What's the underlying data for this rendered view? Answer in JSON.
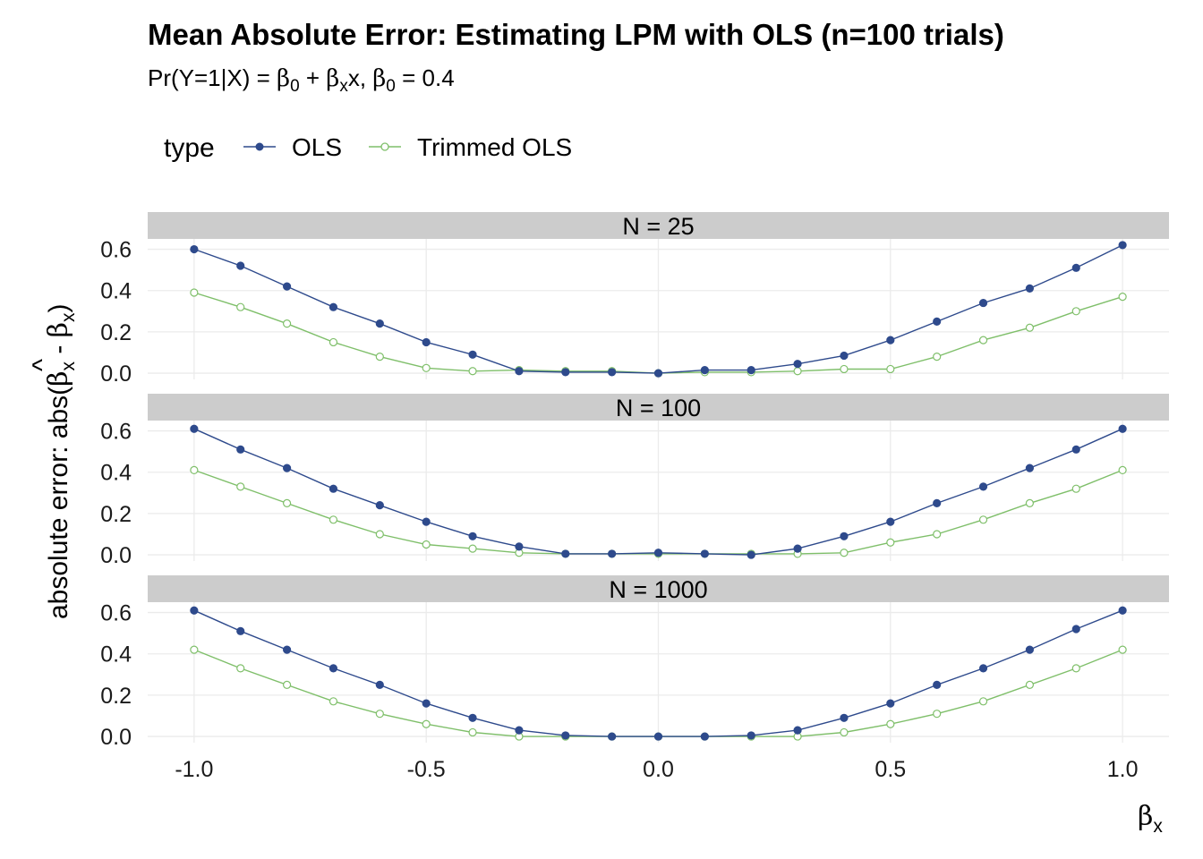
{
  "title": "Mean Absolute Error: Estimating LPM with OLS (n=100 trials)",
  "subtitle": {
    "prefix": "Pr(Y=1|X) = ",
    "beta": "β",
    "sub0": "0",
    "subx": "x",
    "plus": " + ",
    "x_var": "x",
    "sep": ", ",
    "eq": " = 0.4"
  },
  "legend": {
    "title": "type",
    "items": [
      {
        "label": "OLS",
        "color": "#2E4A8C",
        "marker": "filled-circle"
      },
      {
        "label": "Trimmed OLS",
        "color": "#7FBF6A",
        "marker": "hollow-circle"
      }
    ]
  },
  "axes": {
    "x_title_symbol": "β",
    "x_title_sub": "x",
    "y_title_prefix": "absolute error: abs(",
    "y_title_hat": "^",
    "y_title_minus": " - ",
    "y_title_suffix": ")",
    "y_title_beta": "β",
    "y_title_sub": "x"
  },
  "colors": {
    "strip_bg": "#CCCCCC",
    "grid": "#EBEBEB",
    "ols": "#2E4A8C",
    "trimmed": "#7FBF6A"
  },
  "chart_data": {
    "type": "line",
    "facets": [
      {
        "label": "N = 25",
        "x": [
          -1.0,
          -0.9,
          -0.8,
          -0.7,
          -0.6,
          -0.5,
          -0.4,
          -0.3,
          -0.2,
          -0.1,
          0.0,
          0.1,
          0.2,
          0.3,
          0.4,
          0.5,
          0.6,
          0.7,
          0.8,
          0.9,
          1.0
        ],
        "series": [
          {
            "name": "OLS",
            "values": [
              0.6,
              0.52,
              0.42,
              0.32,
              0.24,
              0.15,
              0.09,
              0.01,
              0.005,
              0.005,
              0.0,
              0.015,
              0.015,
              0.045,
              0.085,
              0.16,
              0.25,
              0.34,
              0.41,
              0.51,
              0.62
            ]
          },
          {
            "name": "Trimmed OLS",
            "values": [
              0.39,
              0.32,
              0.24,
              0.15,
              0.08,
              0.025,
              0.01,
              0.015,
              0.01,
              0.01,
              0.0,
              0.005,
              0.005,
              0.01,
              0.02,
              0.02,
              0.08,
              0.16,
              0.22,
              0.3,
              0.37
            ]
          }
        ]
      },
      {
        "label": "N = 100",
        "x": [
          -1.0,
          -0.9,
          -0.8,
          -0.7,
          -0.6,
          -0.5,
          -0.4,
          -0.3,
          -0.2,
          -0.1,
          0.0,
          0.1,
          0.2,
          0.3,
          0.4,
          0.5,
          0.6,
          0.7,
          0.8,
          0.9,
          1.0
        ],
        "series": [
          {
            "name": "OLS",
            "values": [
              0.61,
              0.51,
              0.42,
              0.32,
              0.24,
              0.16,
              0.09,
              0.04,
              0.005,
              0.005,
              0.01,
              0.005,
              0.0,
              0.03,
              0.09,
              0.16,
              0.25,
              0.33,
              0.42,
              0.51,
              0.61
            ]
          },
          {
            "name": "Trimmed OLS",
            "values": [
              0.41,
              0.33,
              0.25,
              0.17,
              0.1,
              0.05,
              0.03,
              0.01,
              0.005,
              0.005,
              0.005,
              0.005,
              0.005,
              0.005,
              0.01,
              0.06,
              0.1,
              0.17,
              0.25,
              0.32,
              0.41
            ]
          }
        ]
      },
      {
        "label": "N = 1000",
        "x": [
          -1.0,
          -0.9,
          -0.8,
          -0.7,
          -0.6,
          -0.5,
          -0.4,
          -0.3,
          -0.2,
          -0.1,
          0.0,
          0.1,
          0.2,
          0.3,
          0.4,
          0.5,
          0.6,
          0.7,
          0.8,
          0.9,
          1.0
        ],
        "series": [
          {
            "name": "OLS",
            "values": [
              0.61,
              0.51,
              0.42,
              0.33,
              0.25,
              0.16,
              0.09,
              0.03,
              0.005,
              0.0,
              0.0,
              0.0,
              0.005,
              0.03,
              0.09,
              0.16,
              0.25,
              0.33,
              0.42,
              0.52,
              0.61
            ]
          },
          {
            "name": "Trimmed OLS",
            "values": [
              0.42,
              0.33,
              0.25,
              0.17,
              0.11,
              0.06,
              0.02,
              0.0,
              0.0,
              0.0,
              0.0,
              0.0,
              0.0,
              0.0,
              0.02,
              0.06,
              0.11,
              0.17,
              0.25,
              0.33,
              0.42
            ]
          }
        ]
      }
    ],
    "x_ticks": [
      -1.0,
      -0.5,
      0.0,
      0.5,
      1.0
    ],
    "x_tick_labels": [
      "-1.0",
      "-0.5",
      "0.0",
      "0.5",
      "1.0"
    ],
    "y_ticks": [
      0.0,
      0.2,
      0.4,
      0.6
    ],
    "y_tick_labels": [
      "0.0",
      "0.2",
      "0.4",
      "0.6"
    ],
    "xlim": [
      -1.1,
      1.1
    ],
    "ylim": [
      -0.03,
      0.65
    ],
    "grid": true,
    "legend_position": "top"
  }
}
